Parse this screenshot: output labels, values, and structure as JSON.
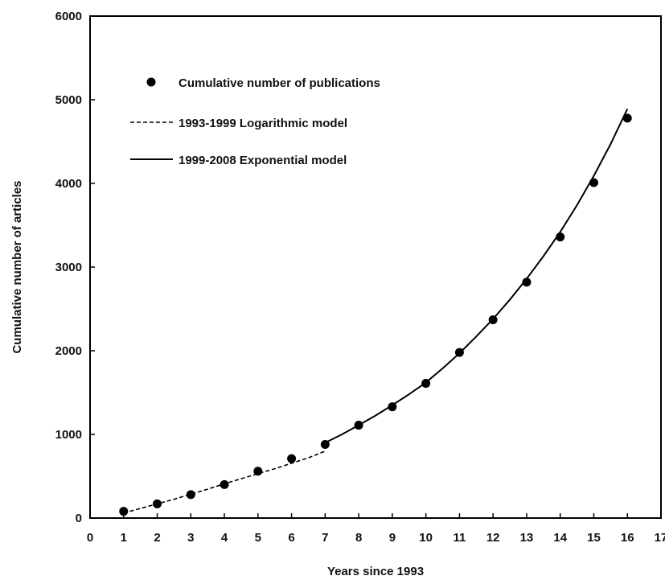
{
  "chart_data": {
    "type": "scatter",
    "xlabel": "Years since 1993",
    "ylabel": "Cumulative number of articles",
    "xlim": [
      0,
      17
    ],
    "ylim": [
      0,
      6000
    ],
    "x_ticks": [
      "0",
      "1",
      "2",
      "3",
      "4",
      "5",
      "6",
      "7",
      "8",
      "9",
      "10",
      "11",
      "12",
      "13",
      "14",
      "15",
      "16",
      "17"
    ],
    "y_ticks": [
      "0",
      "1000",
      "2000",
      "3000",
      "4000",
      "5000",
      "6000"
    ],
    "grid": false,
    "legend_position": "top-left",
    "series": [
      {
        "name": "Cumulative number of publications",
        "style": "markers",
        "color": "#000000",
        "x": [
          1,
          2,
          3,
          4,
          5,
          6,
          7,
          8,
          9,
          10,
          11,
          12,
          13,
          14,
          15,
          16
        ],
        "y": [
          80,
          170,
          280,
          400,
          560,
          710,
          880,
          1110,
          1330,
          1610,
          1980,
          2370,
          2820,
          3360,
          4010,
          4780
        ]
      },
      {
        "name": "1993-1999 Logarithmic model",
        "style": "dashed",
        "color": "#000000",
        "x": [
          1,
          1.5,
          2,
          2.5,
          3,
          3.5,
          4,
          4.5,
          5,
          5.5,
          6,
          6.5,
          7
        ],
        "y": [
          60,
          115,
          170,
          225,
          285,
          345,
          410,
          470,
          530,
          590,
          655,
          720,
          800
        ]
      },
      {
        "name": "1999-2008 Exponential model",
        "style": "solid",
        "color": "#000000",
        "x": [
          7,
          7.5,
          8,
          8.5,
          9,
          9.5,
          10,
          10.5,
          11,
          11.5,
          12,
          12.5,
          13,
          13.5,
          14,
          14.5,
          15,
          15.5,
          16
        ],
        "y": [
          900,
          1000,
          1110,
          1225,
          1350,
          1480,
          1620,
          1790,
          1970,
          2170,
          2380,
          2610,
          2860,
          3130,
          3420,
          3740,
          4090,
          4470,
          4890
        ]
      }
    ]
  }
}
